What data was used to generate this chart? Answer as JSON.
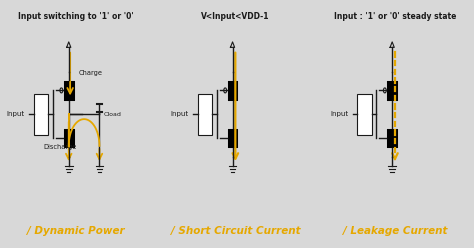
{
  "background_color": "#d8d8d8",
  "panel_bg": "#f2f2f2",
  "text_color": "#1a1a1a",
  "orange_color": "#e6a800",
  "panels": [
    {
      "title": "Input switching to '1' or '0'",
      "label": "/ Dynamic Power"
    },
    {
      "title": "V<Input<VDD-1",
      "label": "/ Short Circuit Current"
    },
    {
      "title": "Input : '1' or '0' steady state",
      "label": "/ Leakage Current"
    }
  ],
  "figsize": [
    4.74,
    2.48
  ],
  "dpi": 100
}
